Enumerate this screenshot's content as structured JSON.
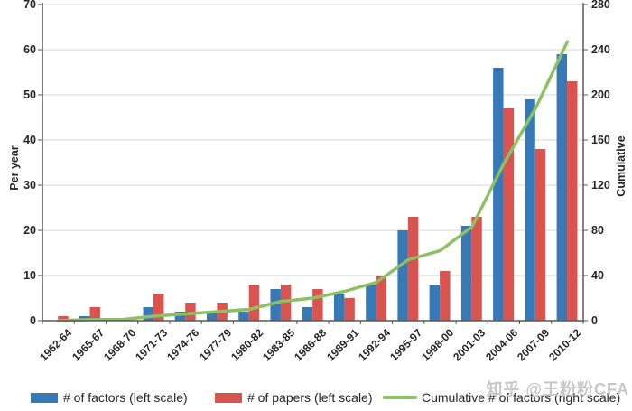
{
  "watermark": "知乎 @王粉粉CFA",
  "chart_data": {
    "type": "bar",
    "subtype": "dual-axis grouped bars with cumulative line overlay",
    "title": "",
    "categories": [
      "1962-64",
      "1965-67",
      "1968-70",
      "1971-73",
      "1974-76",
      "1977-79",
      "1980-82",
      "1983-85",
      "1986-88",
      "1989-91",
      "1992-94",
      "1995-97",
      "1998-00",
      "2001-03",
      "2004-06",
      "2007-09",
      "2010-12"
    ],
    "series": [
      {
        "name": "# of factors (left scale)",
        "kind": "bar",
        "axis": "left",
        "color": "#3779B6",
        "values": [
          0,
          1,
          0,
          3,
          2,
          2,
          2,
          7,
          3,
          6,
          8,
          20,
          8,
          21,
          56,
          49,
          59
        ]
      },
      {
        "name": "# of papers (left scale)",
        "kind": "bar",
        "axis": "left",
        "color": "#D9534F",
        "values": [
          1,
          3,
          0,
          6,
          4,
          4,
          8,
          8,
          7,
          5,
          10,
          23,
          11,
          23,
          47,
          38,
          53
        ]
      },
      {
        "name": "Cumulative # of factors (right scale)",
        "kind": "line",
        "axis": "right",
        "color": "#8DC063",
        "values": [
          0,
          1,
          1,
          4,
          6,
          8,
          10,
          17,
          20,
          26,
          34,
          54,
          62,
          83,
          139,
          188,
          247
        ]
      }
    ],
    "left_axis": {
      "label": "Per year",
      "min": 0,
      "max": 70,
      "ticks": [
        0,
        10,
        20,
        30,
        40,
        50,
        60,
        70
      ]
    },
    "right_axis": {
      "label": "Cumulative",
      "min": 0,
      "max": 280,
      "ticks": [
        0,
        40,
        80,
        120,
        160,
        200,
        240,
        280
      ]
    },
    "grid": true,
    "legend_position": "bottom"
  }
}
